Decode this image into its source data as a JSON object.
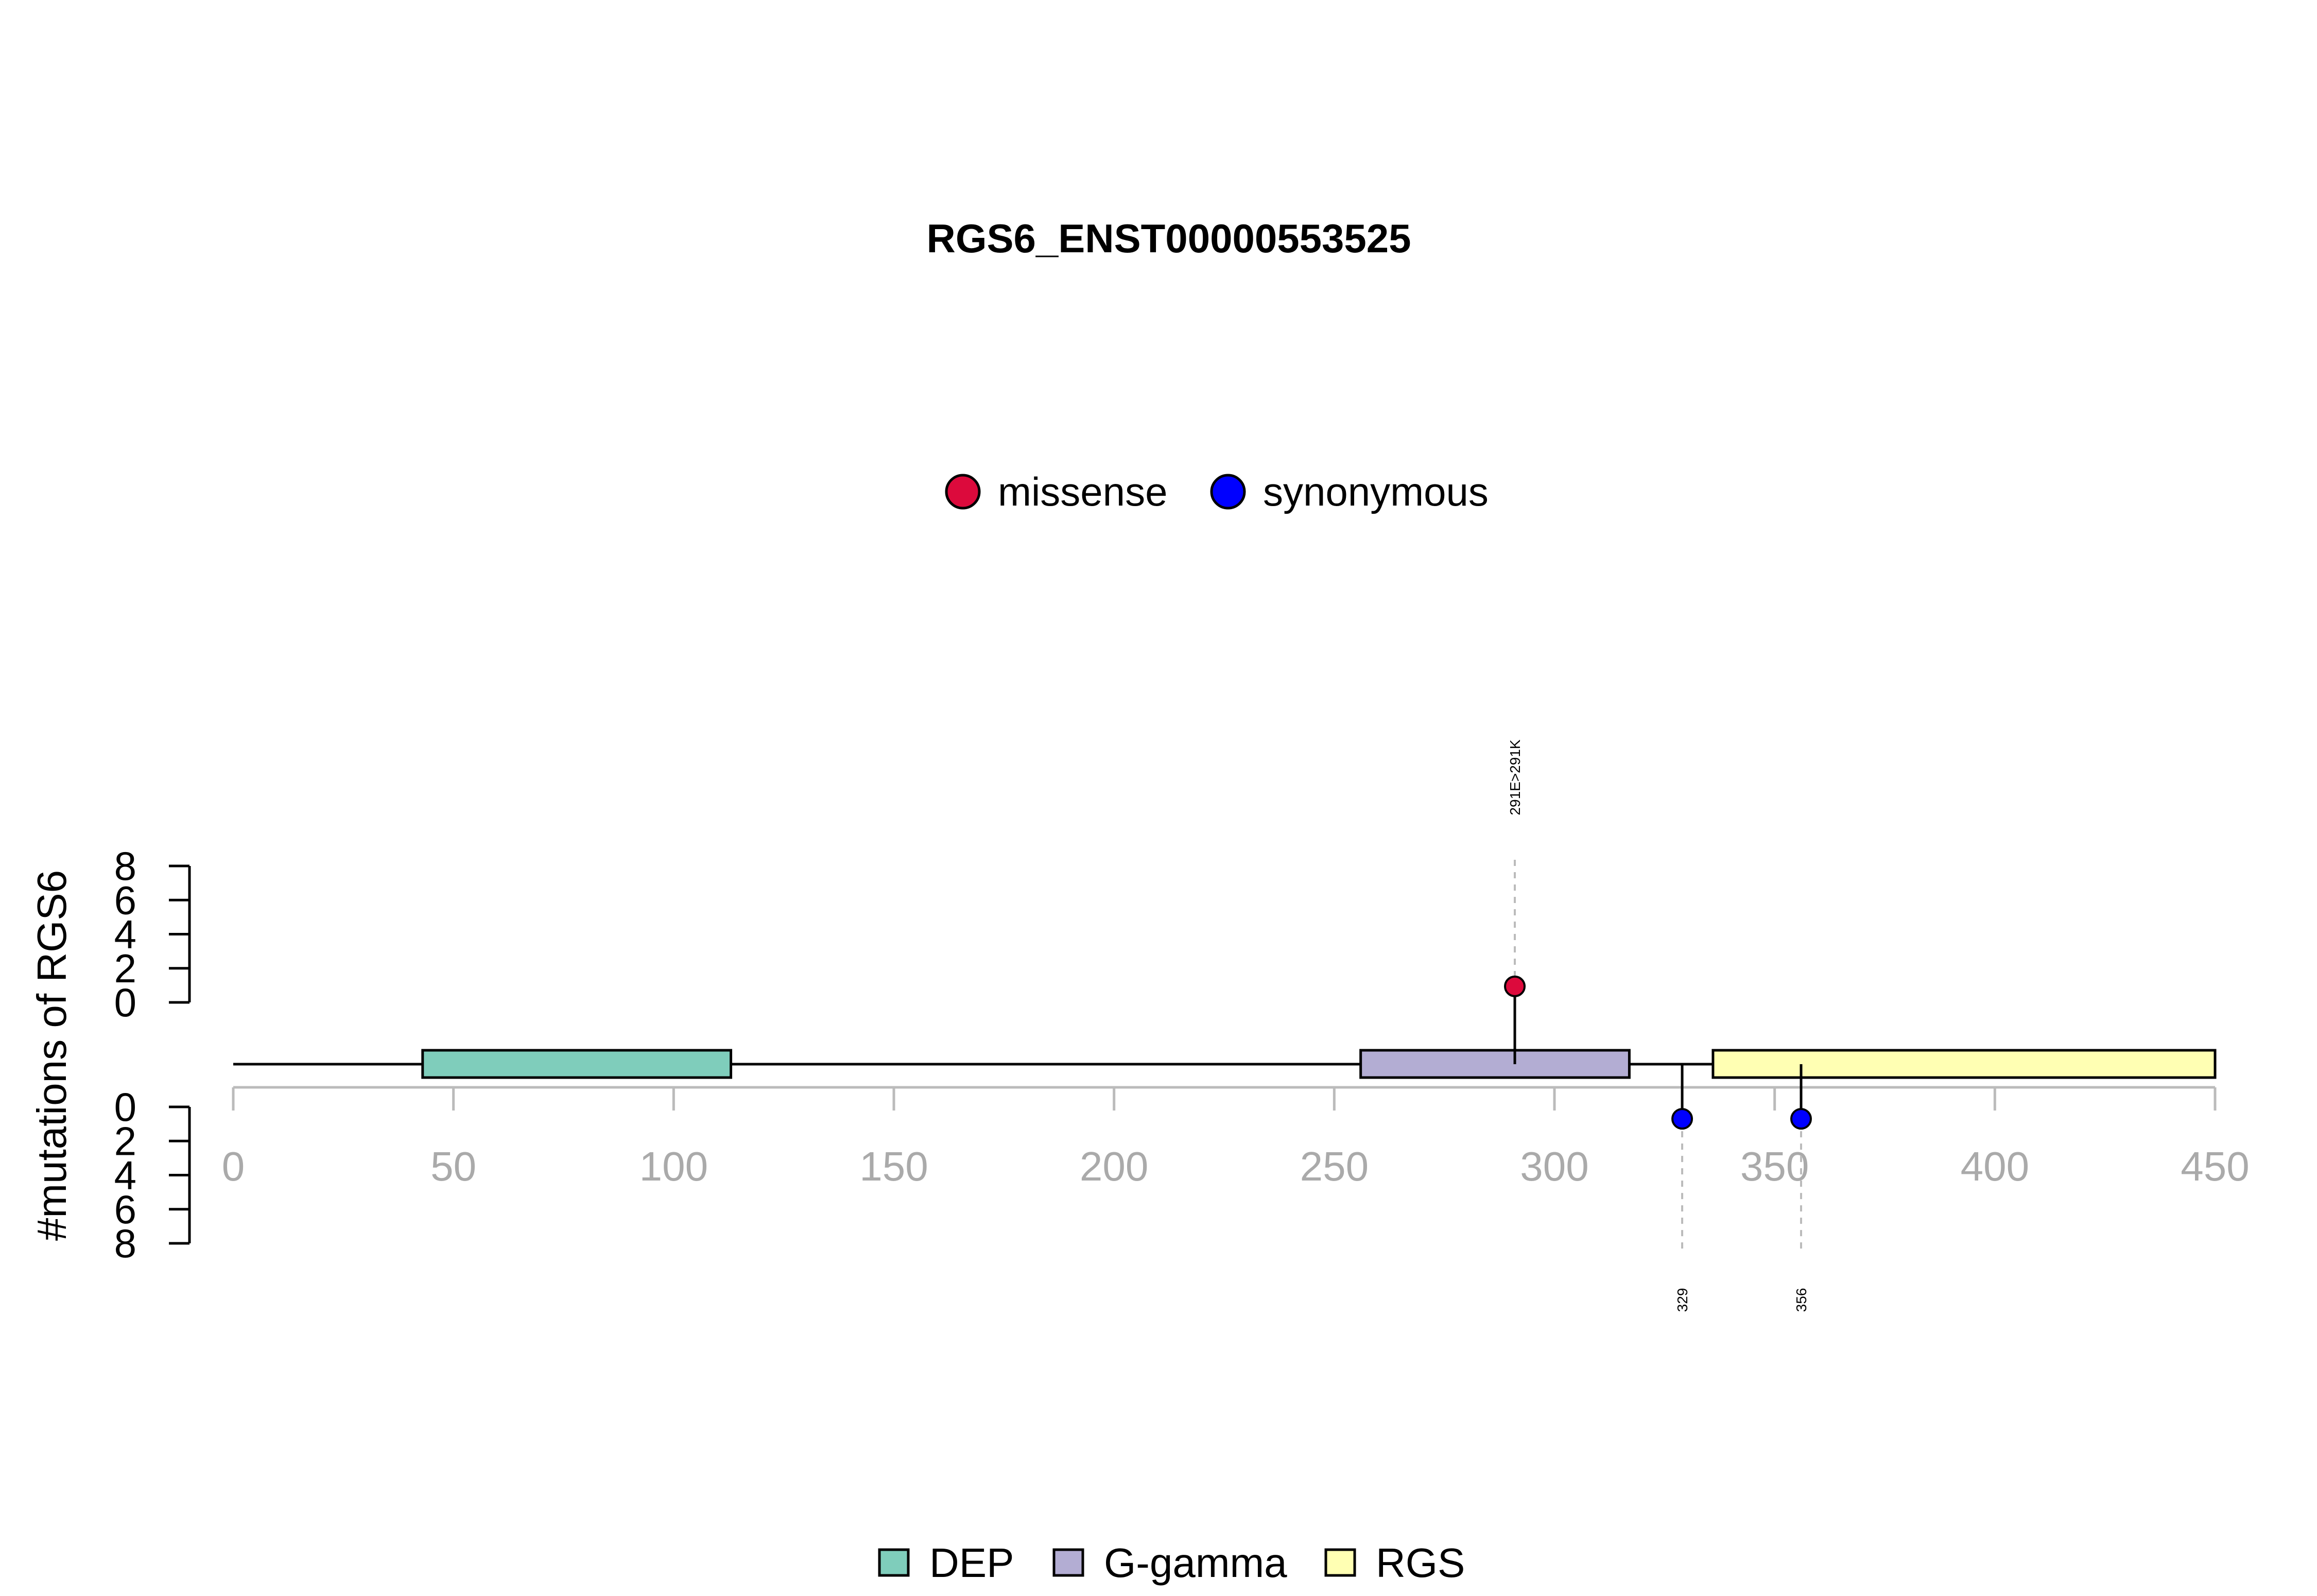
{
  "chart_data": {
    "type": "lollipop",
    "title": "RGS6_ENST00000553525",
    "ylabel": "#mutations of RGS6",
    "x_range": [
      0,
      450
    ],
    "x_ticks": [
      0,
      50,
      100,
      150,
      200,
      250,
      300,
      350,
      400,
      450
    ],
    "y_range": [
      0,
      8
    ],
    "y_ticks": [
      0,
      2,
      4,
      6,
      8
    ],
    "mutation_legend": [
      {
        "label": "missense",
        "color": "#dc0a3c"
      },
      {
        "label": "synonymous",
        "color": "#0000ff"
      }
    ],
    "domains": [
      {
        "name": "DEP",
        "start": 43,
        "end": 113,
        "color": "#7fcdbb"
      },
      {
        "name": "G-gamma",
        "start": 256,
        "end": 317,
        "color": "#b3add3"
      },
      {
        "name": "RGS",
        "start": 336,
        "end": 450,
        "color": "#ffffb3"
      }
    ],
    "mutations": [
      {
        "position": 291,
        "count": 1,
        "type": "missense",
        "side": "top",
        "label": "291E>291K"
      },
      {
        "position": 329,
        "count": 1,
        "type": "synonymous",
        "side": "bottom",
        "label": "329"
      },
      {
        "position": 356,
        "count": 1,
        "type": "synonymous",
        "side": "bottom",
        "label": "356"
      }
    ]
  }
}
